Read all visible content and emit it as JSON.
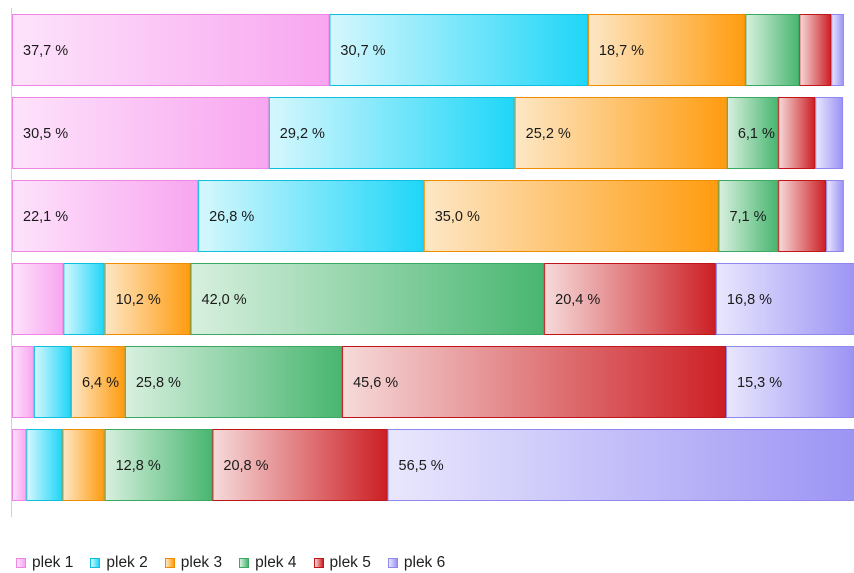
{
  "chart_data": {
    "type": "bar",
    "orientation": "horizontal",
    "stacked": "percent",
    "title": "",
    "xlabel": "",
    "ylabel": "",
    "xlim": [
      0,
      100
    ],
    "grid": false,
    "legend_position": "bottom-left",
    "value_format": "{v} %",
    "decimal_separator": ",",
    "categories": [
      "",
      "",
      "",
      "",
      "",
      ""
    ],
    "series": [
      {
        "name": "plek 1",
        "color_start": "#fde3fb",
        "color_end": "#f8a6f0",
        "border": "#ef86e4",
        "values": [
          37.7,
          30.5,
          22.1,
          6.1,
          2.6,
          1.7
        ]
      },
      {
        "name": "plek 2",
        "color_start": "#d6f7fd",
        "color_end": "#1fd6f8",
        "border": "#10bfe0",
        "values": [
          30.7,
          29.2,
          26.8,
          4.9,
          4.4,
          4.3
        ]
      },
      {
        "name": "plek 3",
        "color_start": "#fde7c6",
        "color_end": "#ff9c10",
        "border": "#f08c00",
        "values": [
          18.7,
          25.2,
          35.0,
          10.2,
          6.4,
          5.0
        ]
      },
      {
        "name": "plek 4",
        "color_start": "#d8f0df",
        "color_end": "#48b670",
        "border": "#3da862",
        "values": [
          6.4,
          6.1,
          7.1,
          42.0,
          25.8,
          12.8
        ]
      },
      {
        "name": "plek 5",
        "color_start": "#f6dada",
        "color_end": "#cc1f24",
        "border": "#c0161b",
        "values": [
          3.8,
          4.4,
          5.7,
          20.4,
          45.6,
          20.8
        ]
      },
      {
        "name": "plek 6",
        "color_start": "#e9e7fd",
        "color_end": "#9b93f4",
        "border": "#8f86ee",
        "values": [
          1.5,
          3.3,
          2.1,
          16.8,
          15.3,
          56.5
        ]
      }
    ],
    "data_labels": [
      [
        "37,7 %",
        "30,7 %",
        "18,7 %",
        "",
        "",
        ""
      ],
      [
        "30,5 %",
        "29,2 %",
        "25,2 %",
        "6,1 %",
        "",
        ""
      ],
      [
        "22,1 %",
        "26,8 %",
        "35,0 %",
        "7,1 %",
        "",
        ""
      ],
      [
        "",
        "",
        "10,2 %",
        "42,0 %",
        "20,4 %",
        "16,8 %"
      ],
      [
        "",
        "",
        "6,4 %",
        "25,8 %",
        "45,6 %",
        "15,3 %"
      ],
      [
        "",
        "",
        "",
        "12,8 %",
        "20,8 %",
        "56,5 %"
      ]
    ]
  },
  "legend": {
    "items": [
      {
        "label": "plek 1"
      },
      {
        "label": "plek 2"
      },
      {
        "label": "plek 3"
      },
      {
        "label": "plek 4"
      },
      {
        "label": "plek 5"
      },
      {
        "label": "plek 6"
      }
    ]
  }
}
